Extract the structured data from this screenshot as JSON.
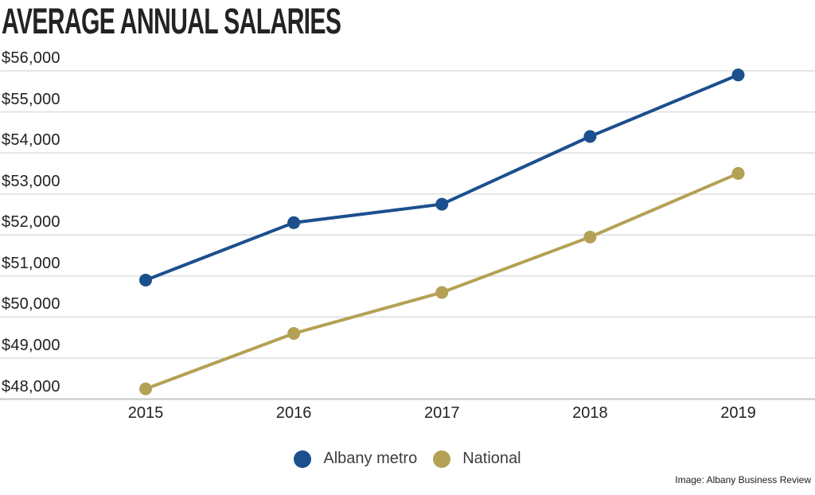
{
  "title": "AVERAGE ANNUAL SALARIES",
  "attribution": "Image: Albany Business Review",
  "colors": {
    "albany_metro": "#1b4f8e",
    "national": "#b5a155",
    "gridline": "#dedede",
    "baseline": "#c6c6c6",
    "title_text": "#232323",
    "axis_text": "#222222",
    "legend_text": "#3d3d3d"
  },
  "chart_data": {
    "type": "line",
    "title": "AVERAGE ANNUAL SALARIES",
    "x": [
      "2015",
      "2016",
      "2017",
      "2018",
      "2019"
    ],
    "series": [
      {
        "name": "Albany metro",
        "color": "#1b4f8e",
        "values": [
          50900,
          52300,
          52750,
          54400,
          55900
        ]
      },
      {
        "name": "National",
        "color": "#b5a155",
        "values": [
          48250,
          49600,
          50600,
          51950,
          53500
        ]
      }
    ],
    "xlabel": "",
    "ylabel": "",
    "ylim": [
      48000,
      56000
    ],
    "ytick_step": 1000,
    "ytick_prefix": "$",
    "grid": true,
    "legend_position": "bottom",
    "marker": "circle"
  }
}
